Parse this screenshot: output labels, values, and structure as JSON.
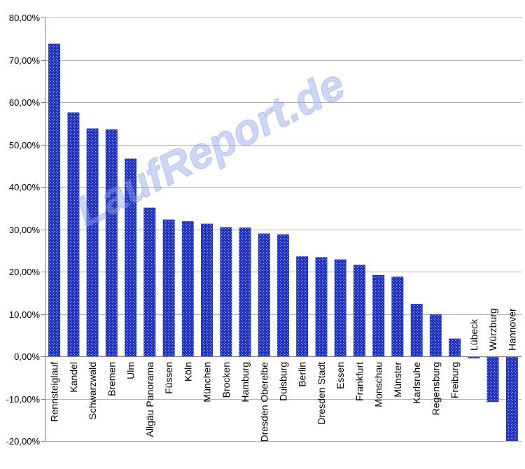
{
  "watermark": "LaufReport.de",
  "colors": {
    "bar": "#1a2cf0",
    "bar_dot": "#9fb0ff",
    "grid": "#b3b3b3",
    "axis": "#808080"
  },
  "chart_data": {
    "type": "bar",
    "categories": [
      "Rennsteiglauf",
      "Kandel",
      "Schwarzwald",
      "Bremen",
      "Ulm",
      "Allgäu Panorama",
      "Füssen",
      "Köln",
      "München",
      "Brocken",
      "Hamburg",
      "Dresden Oberelbe",
      "Duisburg",
      "Berlin",
      "Dresden Stadt",
      "Essen",
      "Frankfurt",
      "Monschau",
      "Münster",
      "Karlsruhe",
      "Regensburg",
      "Freiburg",
      "Lübeck",
      "Würzburg",
      "Hannover"
    ],
    "values": [
      73.8,
      57.6,
      53.8,
      53.6,
      46.7,
      35.1,
      32.3,
      31.9,
      31.3,
      30.5,
      30.4,
      29.0,
      28.8,
      23.6,
      23.4,
      22.9,
      21.6,
      19.2,
      18.8,
      12.4,
      9.9,
      4.2,
      -0.5,
      -10.8,
      -20.0
    ],
    "ylim": [
      -20,
      80
    ],
    "yticks": [
      -20,
      -10,
      0,
      10,
      20,
      30,
      40,
      50,
      60,
      70,
      80
    ],
    "ytick_labels": [
      "-20,00%",
      "-10,00%",
      "0,00%",
      "10,00%",
      "20,00%",
      "30,00%",
      "40,00%",
      "50,00%",
      "60,00%",
      "70,00%",
      "80,00%"
    ],
    "grid": true,
    "legend": false,
    "title": "",
    "xlabel": "",
    "ylabel": ""
  }
}
